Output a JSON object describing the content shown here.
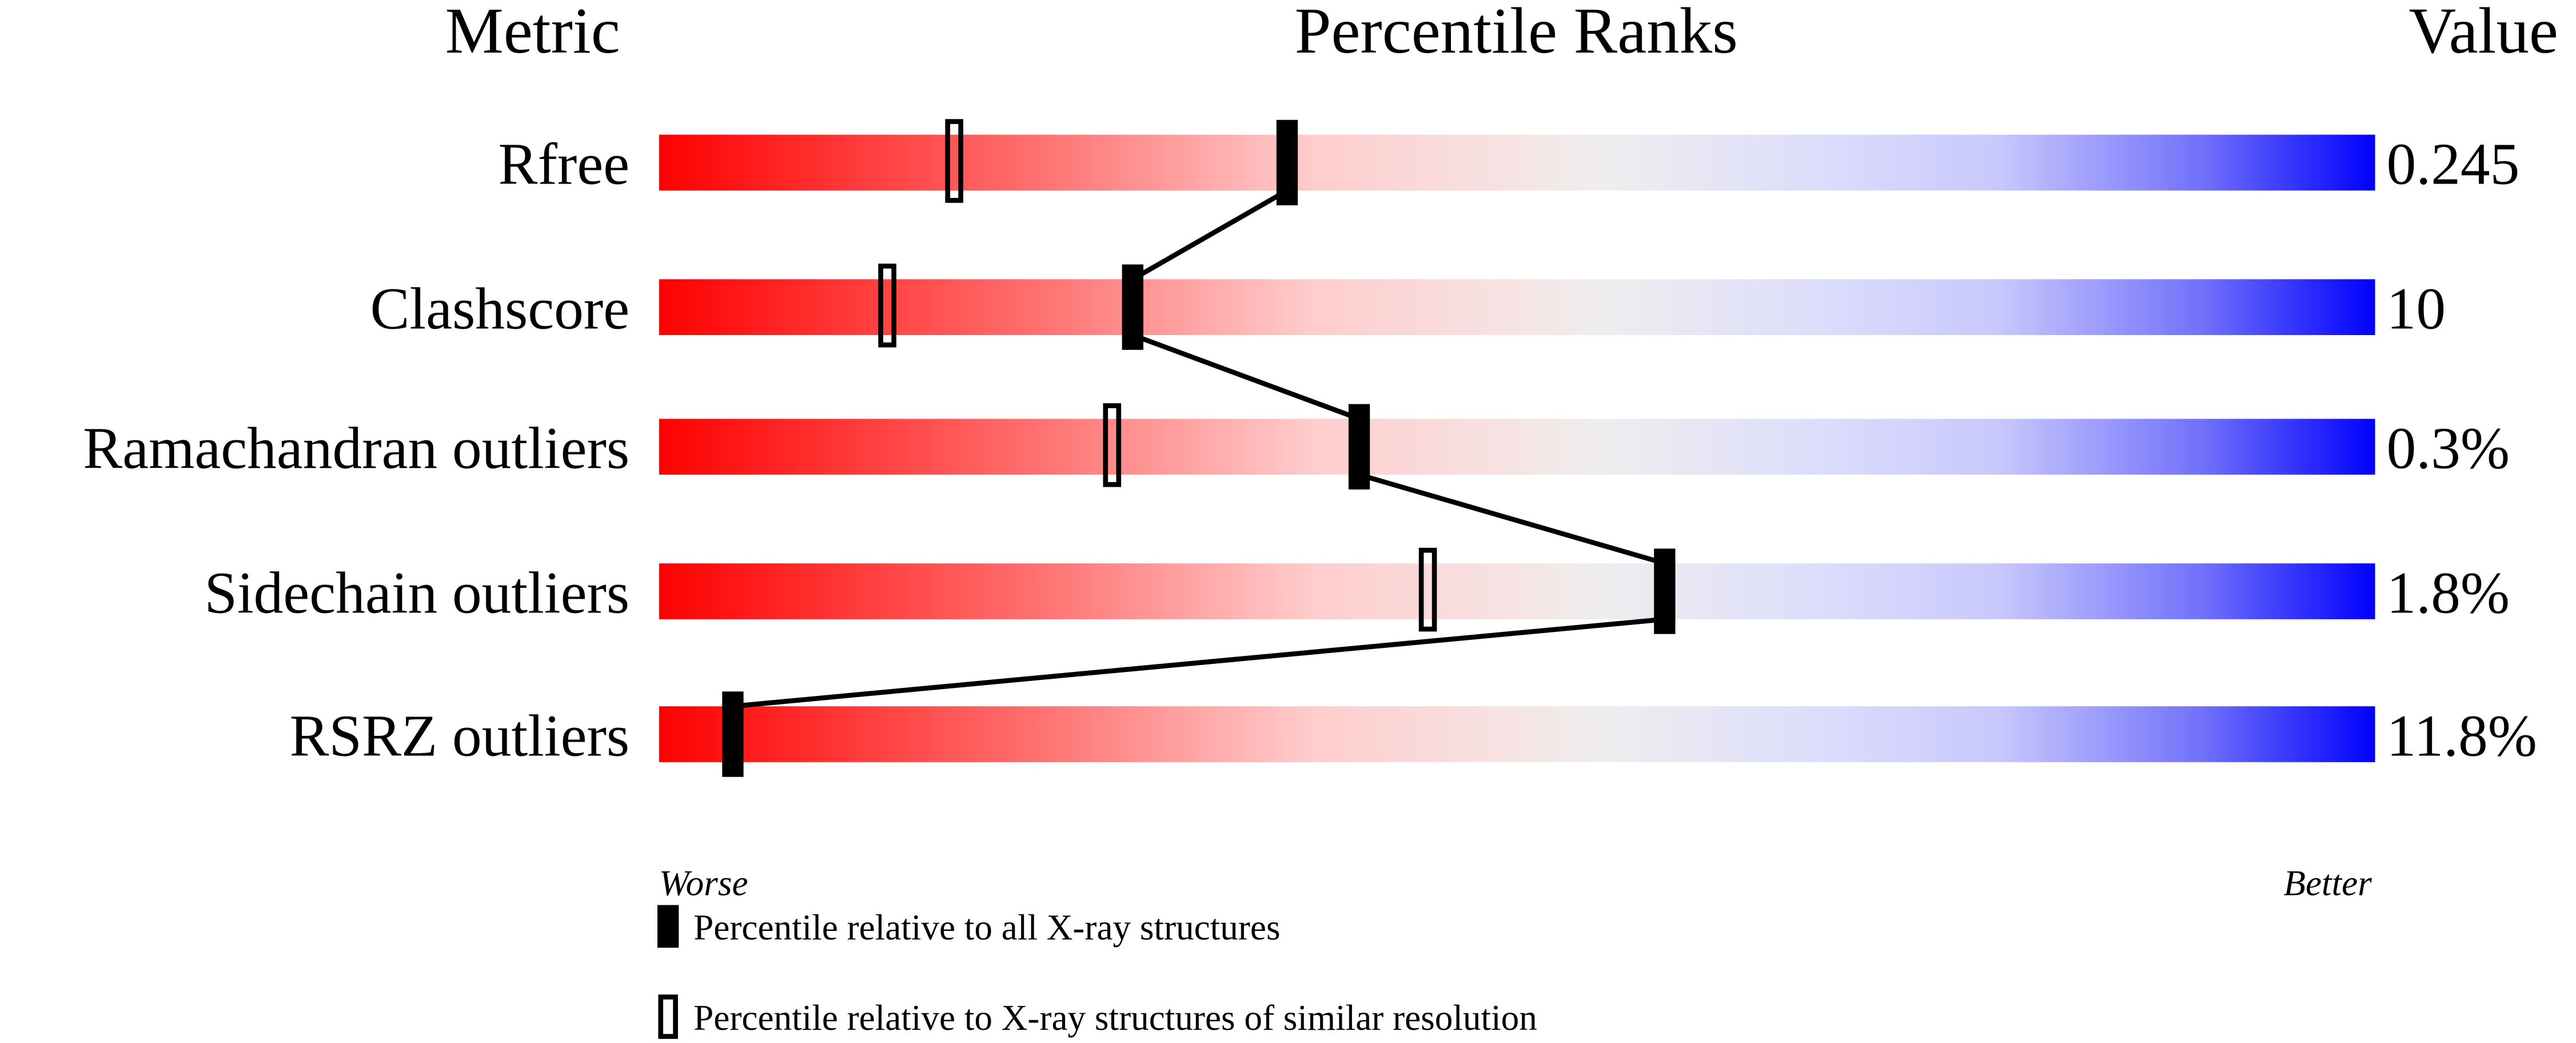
{
  "chart_data": {
    "type": "bar",
    "headers": {
      "metric": "Metric",
      "ranks": "Percentile Ranks",
      "value": "Value"
    },
    "axis": {
      "left": "Worse",
      "right": "Better",
      "range": [
        0,
        100
      ]
    },
    "metrics": [
      {
        "name": "Rfree",
        "value": "0.245",
        "percentile_all": 36.6,
        "percentile_similar": 17.2
      },
      {
        "name": "Clashscore",
        "value": "10",
        "percentile_all": 27.6,
        "percentile_similar": 13.3
      },
      {
        "name": "Ramachandran outliers",
        "value": "0.3%",
        "percentile_all": 40.8,
        "percentile_similar": 26.4
      },
      {
        "name": "Sidechain outliers",
        "value": "1.8%",
        "percentile_all": 58.6,
        "percentile_similar": 44.8
      },
      {
        "name": "RSRZ outliers",
        "value": "11.8%",
        "percentile_all": 4.3,
        "percentile_similar": null
      }
    ],
    "legend": [
      {
        "marker": "filled",
        "label": "Percentile relative to all X-ray structures"
      },
      {
        "marker": "open",
        "label": "Percentile relative to X-ray structures of similar resolution"
      }
    ],
    "colors": {
      "worse": "#ff0000",
      "middle": "#eeeeee",
      "better": "#0000ff"
    }
  }
}
